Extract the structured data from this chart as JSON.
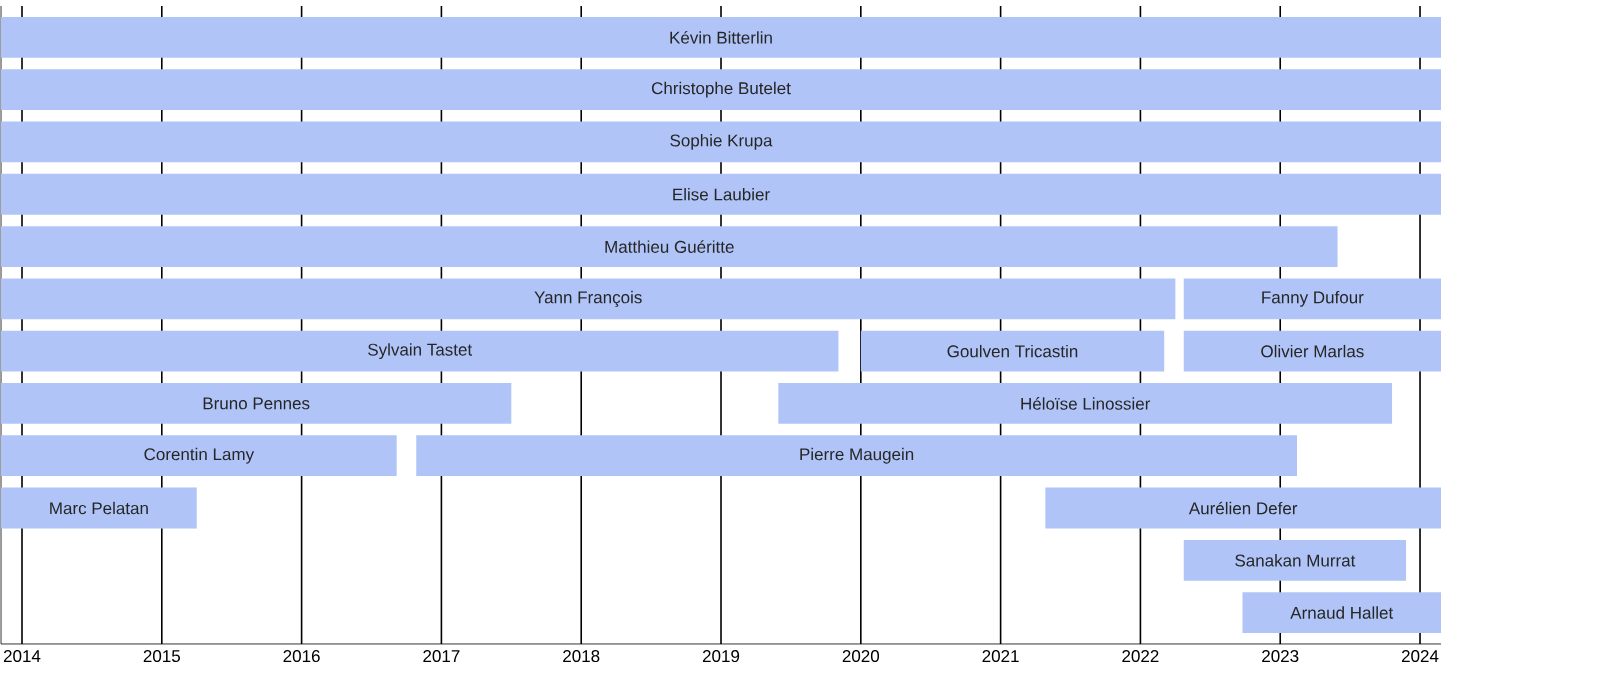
{
  "chart_data": {
    "type": "bar",
    "orientation": "horizontal",
    "categories": [
      null,
      null,
      null,
      null,
      null,
      null,
      null,
      null,
      null,
      null,
      null,
      null
    ],
    "xlim": [
      2013.85,
      2024.15
    ],
    "xticks": [
      2014,
      2015,
      2016,
      2017,
      2018,
      2019,
      2020,
      2021,
      2022,
      2023,
      2024
    ],
    "grid": "x",
    "tick_labels": "x",
    "series": [
      {
        "color": "#b0c4f8",
        "base": [
          2013.85,
          2013.85,
          2013.85,
          2013.85,
          2013.85,
          2013.85,
          2013.85,
          2013.85,
          2013.85,
          2013.85,
          2022.31,
          2022.73
        ],
        "values": [
          10.3,
          10.3,
          10.3,
          10.3,
          9.56,
          8.4,
          5.99,
          3.65,
          2.83,
          1.4,
          1.59,
          1.42
        ],
        "value_labels": [
          "Kévin Bitterlin",
          "Christophe Butelet",
          "Sophie Krupa",
          "Elise Laubier",
          "Matthieu Guéritte",
          "Yann François",
          "Sylvain Tastet",
          "Bruno Pennes",
          "Corentin Lamy",
          "Marc Pelatan",
          "Sanakan Murrat",
          "Arnaud Hallet"
        ]
      },
      {
        "color": "#b0c4f8",
        "base": [
          null,
          null,
          null,
          null,
          null,
          2022.31,
          2020.0,
          2019.41,
          2016.82,
          2021.32,
          null,
          null
        ],
        "values": [
          null,
          null,
          null,
          null,
          null,
          1.84,
          2.17,
          4.39,
          6.3,
          2.83,
          null,
          null
        ],
        "value_labels": [
          null,
          null,
          null,
          null,
          null,
          "Fanny Dufour",
          "Goulven Tricastin",
          "Héloïse Linossier",
          "Pierre Maugein",
          "Aurélien Defer",
          null,
          null
        ]
      },
      {
        "color": "#b0c4f8",
        "base": [
          null,
          null,
          null,
          null,
          null,
          null,
          2022.31,
          null,
          null,
          null,
          null,
          null
        ],
        "values": [
          null,
          null,
          null,
          null,
          null,
          null,
          1.84,
          null,
          null,
          null,
          null,
          null
        ],
        "value_labels": [
          null,
          null,
          null,
          null,
          null,
          null,
          "Olivier Marlas",
          null,
          null,
          null,
          null,
          null
        ]
      }
    ]
  }
}
